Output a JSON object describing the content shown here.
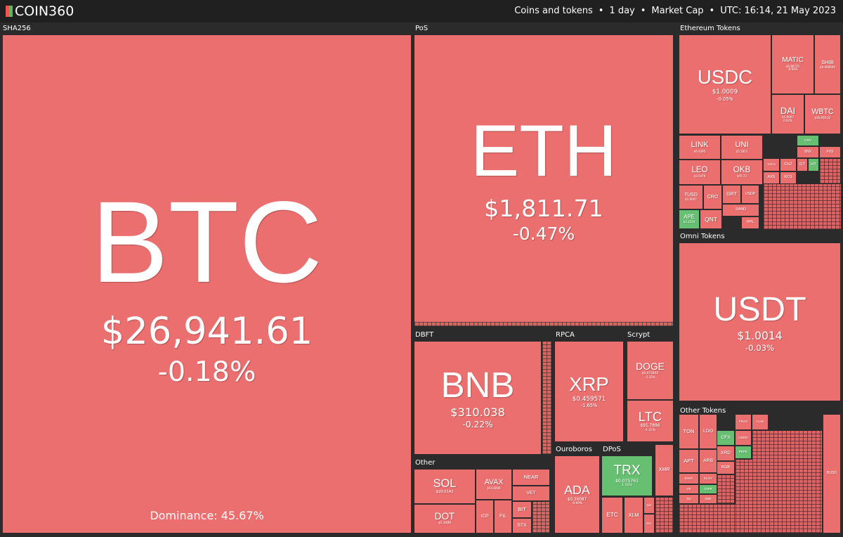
{
  "header": {
    "logo": "COIN360",
    "items": [
      "Coins and tokens",
      "1 day",
      "Market Cap",
      "UTC: 16:14, 21 May 2023"
    ]
  },
  "groups": [
    {
      "label": "SHA256",
      "dominance": "Dominance: 45.67%",
      "tiles": [
        {
          "symbol": "BTC",
          "price": "$26,941.61",
          "change": "-0.18%"
        }
      ]
    },
    {
      "label": "PoS",
      "tiles": [
        {
          "symbol": "ETH",
          "price": "$1,811.71",
          "change": "-0.47%"
        }
      ]
    },
    {
      "label": "Ethereum Tokens",
      "tiles": [
        {
          "symbol": "USDC",
          "price": "$1.0009",
          "change": "-0.05%"
        },
        {
          "symbol": "MATIC",
          "price": "$0.86725",
          "change": "-0.68%"
        },
        {
          "symbol": "SHIB",
          "price": "$0.000009"
        },
        {
          "symbol": "DAI",
          "price": "$1.0007",
          "change": "0.02%"
        },
        {
          "symbol": "WBTC",
          "price": "$26,930.02"
        },
        {
          "symbol": "LINK",
          "price": "$6.4295"
        },
        {
          "symbol": "UNI",
          "price": "$5.1811"
        },
        {
          "symbol": "LEO",
          "price": "$3.5479"
        },
        {
          "symbol": "OKB",
          "price": "$45.72"
        },
        {
          "symbol": "TUSD",
          "price": "$1.0007"
        },
        {
          "symbol": "CRO"
        },
        {
          "symbol": "APE",
          "price": "$3.2224"
        },
        {
          "symbol": "QNT"
        },
        {
          "symbol": "GRT"
        },
        {
          "symbol": "USDP"
        },
        {
          "symbol": "SAND"
        },
        {
          "symbol": "RPL"
        },
        {
          "symbol": "THETA"
        },
        {
          "symbol": "CHZ"
        },
        {
          "symbol": "AXS"
        },
        {
          "symbol": "KCS"
        },
        {
          "symbol": "GT"
        },
        {
          "symbol": "HT"
        },
        {
          "symbol": "SNX"
        },
        {
          "symbol": "CRV"
        },
        {
          "symbol": "FXS"
        }
      ]
    },
    {
      "label": "Omni Tokens",
      "tiles": [
        {
          "symbol": "USDT",
          "price": "$1.0014",
          "change": "-0.03%"
        }
      ]
    },
    {
      "label": "Other Tokens",
      "tiles": [
        {
          "symbol": "TON"
        },
        {
          "symbol": "LDO"
        },
        {
          "symbol": "FRAX"
        },
        {
          "symbol": "FLOKI"
        },
        {
          "symbol": "CFX"
        },
        {
          "symbol": "USDD"
        },
        {
          "symbol": "APT"
        },
        {
          "symbol": "ARB"
        },
        {
          "symbol": "XRD"
        },
        {
          "symbol": "PEPE"
        },
        {
          "symbol": "BGB"
        },
        {
          "symbol": "KAVA"
        },
        {
          "symbol": "KLAY"
        },
        {
          "symbol": "OP"
        },
        {
          "symbol": "CSPR"
        },
        {
          "symbol": "INJ"
        },
        {
          "symbol": "GMX"
        },
        {
          "symbol": "BUSD"
        }
      ]
    },
    {
      "label": "DBFT",
      "tiles": [
        {
          "symbol": "BNB",
          "price": "$310.038",
          "change": "-0.22%"
        }
      ]
    },
    {
      "label": "RPCA",
      "tiles": [
        {
          "symbol": "XRP",
          "price": "$0.459571",
          "change": "-1.65%"
        }
      ]
    },
    {
      "label": "Scrypt",
      "tiles": [
        {
          "symbol": "DOGE",
          "price": "$0.072402",
          "change": "-1.32%"
        },
        {
          "symbol": "LTC",
          "price": "$91.7896",
          "change": "-1.31%"
        }
      ]
    },
    {
      "label": "Other",
      "tiles": [
        {
          "symbol": "SOL",
          "price": "$20.0142"
        },
        {
          "symbol": "DOT",
          "price": "$5.3088"
        },
        {
          "symbol": "AVAX",
          "price": "$14.6006"
        },
        {
          "symbol": "ICP"
        },
        {
          "symbol": "FIL"
        },
        {
          "symbol": "NEAR"
        },
        {
          "symbol": "VET"
        },
        {
          "symbol": "BIT"
        },
        {
          "symbol": "STX"
        }
      ]
    },
    {
      "label": "Ouroboros",
      "tiles": [
        {
          "symbol": "ADA",
          "price": "$0.36087",
          "change": "-0.69%"
        }
      ]
    },
    {
      "label": "DPoS",
      "tiles": [
        {
          "symbol": "TRX",
          "price": "$0.075761",
          "change": "1.51%"
        },
        {
          "symbol": "ETC"
        },
        {
          "symbol": "XLM"
        },
        {
          "symbol": "XMR"
        },
        {
          "symbol": "ZEC"
        },
        {
          "symbol": "IMX"
        }
      ]
    }
  ]
}
